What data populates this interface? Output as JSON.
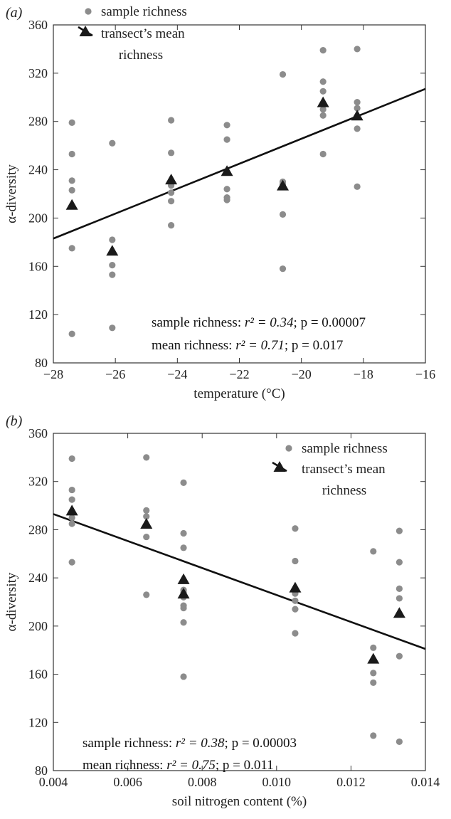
{
  "chart_data": [
    {
      "panel": "(a)",
      "type": "scatter",
      "xlabel": "temperature (°C)",
      "ylabel": "α-diversity",
      "xlim": [
        -28,
        -16
      ],
      "ylim": [
        80,
        360
      ],
      "xticks": [
        -28,
        -26,
        -24,
        -22,
        -20,
        -18,
        -16
      ],
      "yticks": [
        80,
        120,
        160,
        200,
        240,
        280,
        320,
        360
      ],
      "grid": false,
      "legend_position": "top-left",
      "legend": {
        "sample_label": "sample richness",
        "mean_label_1": "transect’s mean",
        "mean_label_2": "richness"
      },
      "series": [
        {
          "name": "sample richness",
          "color": "#8c8c8c",
          "points": [
            [
              -27.4,
              279
            ],
            [
              -27.4,
              253
            ],
            [
              -27.4,
              231
            ],
            [
              -27.4,
              223
            ],
            [
              -27.4,
              175
            ],
            [
              -27.4,
              104
            ],
            [
              -26.1,
              262
            ],
            [
              -26.1,
              182
            ],
            [
              -26.1,
              161
            ],
            [
              -26.1,
              153
            ],
            [
              -26.1,
              109
            ],
            [
              -24.2,
              281
            ],
            [
              -24.2,
              254
            ],
            [
              -24.2,
              227
            ],
            [
              -24.2,
              221
            ],
            [
              -24.2,
              214
            ],
            [
              -24.2,
              194
            ],
            [
              -22.4,
              277
            ],
            [
              -22.4,
              265
            ],
            [
              -22.4,
              224
            ],
            [
              -22.4,
              217
            ],
            [
              -22.4,
              215
            ],
            [
              -20.6,
              319
            ],
            [
              -20.6,
              230
            ],
            [
              -20.6,
              228
            ],
            [
              -20.6,
              203
            ],
            [
              -20.6,
              158
            ],
            [
              -19.3,
              339
            ],
            [
              -19.3,
              313
            ],
            [
              -19.3,
              305
            ],
            [
              -19.3,
              290
            ],
            [
              -19.3,
              285
            ],
            [
              -19.3,
              253
            ],
            [
              -18.2,
              340
            ],
            [
              -18.2,
              296
            ],
            [
              -18.2,
              291
            ],
            [
              -18.2,
              274
            ],
            [
              -18.2,
              226
            ]
          ]
        },
        {
          "name": "transect’s mean richness",
          "color": "#1a1a1a",
          "points": [
            [
              -27.4,
              211
            ],
            [
              -26.1,
              173
            ],
            [
              -24.2,
              232
            ],
            [
              -22.4,
              239
            ],
            [
              -20.6,
              227
            ],
            [
              -19.3,
              296
            ],
            [
              -18.2,
              285
            ]
          ]
        }
      ],
      "regression_line": {
        "from": [
          -28,
          183
        ],
        "to": [
          -16,
          307
        ]
      },
      "stats": [
        {
          "prefix": "sample richness: ",
          "r2": "r² = 0.34",
          "p": "p = 0.00007"
        },
        {
          "prefix": "mean richness: ",
          "r2": "r² = 0.71",
          "p": "p = 0.017"
        }
      ]
    },
    {
      "panel": "(b)",
      "type": "scatter",
      "xlabel": "soil nitrogen content (%)",
      "ylabel": "α-diversity",
      "xlim": [
        0.004,
        0.014
      ],
      "ylim": [
        80,
        360
      ],
      "xticks": [
        "0.004",
        "0.006",
        "0.008",
        "0.010",
        "0.012",
        "0.014"
      ],
      "yticks": [
        80,
        120,
        160,
        200,
        240,
        280,
        320,
        360
      ],
      "grid": false,
      "legend_position": "top-right",
      "legend": {
        "sample_label": "sample richness",
        "mean_label_1": "transect’s mean",
        "mean_label_2": "richness"
      },
      "series": [
        {
          "name": "sample richness",
          "color": "#8c8c8c",
          "points": [
            [
              0.0045,
              339
            ],
            [
              0.0045,
              313
            ],
            [
              0.0045,
              305
            ],
            [
              0.0045,
              290
            ],
            [
              0.0045,
              285
            ],
            [
              0.0045,
              253
            ],
            [
              0.0065,
              340
            ],
            [
              0.0065,
              296
            ],
            [
              0.0065,
              291
            ],
            [
              0.0065,
              274
            ],
            [
              0.0065,
              226
            ],
            [
              0.0075,
              319
            ],
            [
              0.0075,
              277
            ],
            [
              0.0075,
              265
            ],
            [
              0.0075,
              230
            ],
            [
              0.0075,
              228
            ],
            [
              0.0075,
              224
            ],
            [
              0.0075,
              217
            ],
            [
              0.0075,
              215
            ],
            [
              0.0075,
              203
            ],
            [
              0.0075,
              158
            ],
            [
              0.0105,
              281
            ],
            [
              0.0105,
              254
            ],
            [
              0.0105,
              227
            ],
            [
              0.0105,
              221
            ],
            [
              0.0105,
              214
            ],
            [
              0.0105,
              194
            ],
            [
              0.0126,
              262
            ],
            [
              0.0126,
              182
            ],
            [
              0.0126,
              161
            ],
            [
              0.0126,
              153
            ],
            [
              0.0126,
              109
            ],
            [
              0.0133,
              279
            ],
            [
              0.0133,
              253
            ],
            [
              0.0133,
              231
            ],
            [
              0.0133,
              223
            ],
            [
              0.0133,
              175
            ],
            [
              0.0133,
              104
            ]
          ]
        },
        {
          "name": "transect’s mean richness",
          "color": "#1a1a1a",
          "points": [
            [
              0.0045,
              296
            ],
            [
              0.0065,
              285
            ],
            [
              0.0075,
              239
            ],
            [
              0.0075,
              227
            ],
            [
              0.0105,
              232
            ],
            [
              0.0126,
              173
            ],
            [
              0.0133,
              211
            ]
          ]
        }
      ],
      "regression_line": {
        "from": [
          0.004,
          293
        ],
        "to": [
          0.014,
          181
        ]
      },
      "stats": [
        {
          "prefix": "sample richness: ",
          "r2": "r² = 0.38",
          "p": "p = 0.00003"
        },
        {
          "prefix": "mean richness: ",
          "r2": "r² = 0.75",
          "p": "p = 0.011"
        }
      ]
    }
  ]
}
